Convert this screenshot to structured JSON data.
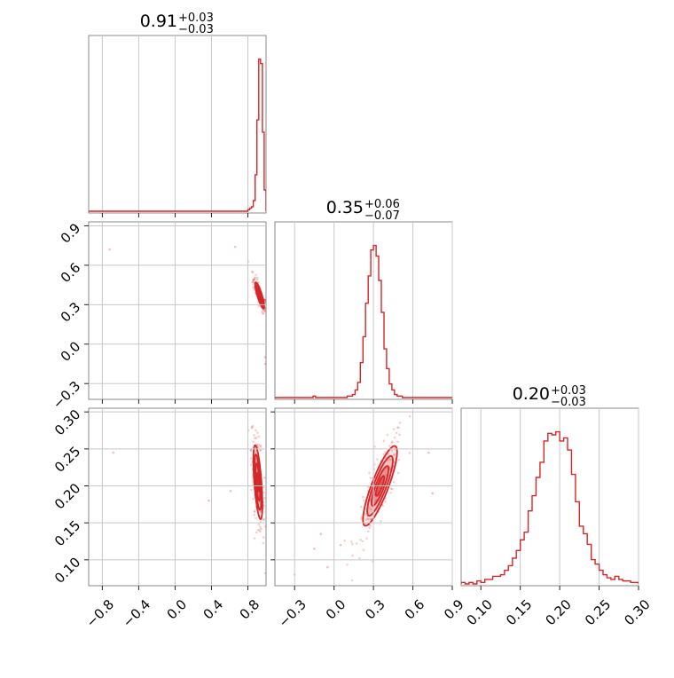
{
  "chart_data": [
    {
      "type": "histogram",
      "panel": "diag-1",
      "title": "0.91",
      "title_err_plus": "+0.03",
      "title_err_minus": "−0.03",
      "xlim": [
        -0.95,
        1.0
      ],
      "x_ticks": [
        -0.8,
        -0.4,
        0.0,
        0.4,
        0.8
      ],
      "x_tick_labels": [
        "−0.8",
        "−0.4",
        "0.0",
        "0.4",
        "0.8"
      ],
      "bin_edges": [
        0.78,
        0.8,
        0.82,
        0.84,
        0.86,
        0.88,
        0.9,
        0.92,
        0.94,
        0.96,
        0.98,
        1.0
      ],
      "counts": [
        0.0,
        0.01,
        0.02,
        0.03,
        0.07,
        0.24,
        0.6,
        1.0,
        0.97,
        0.52,
        0.14
      ],
      "grid": true,
      "color": "#d62728"
    },
    {
      "type": "histogram",
      "panel": "diag-2",
      "title": "0.35",
      "title_err_plus": "+0.06",
      "title_err_minus": "−0.07",
      "xlim": [
        -0.45,
        0.9
      ],
      "x_ticks": [
        -0.3,
        0.0,
        0.3,
        0.6,
        0.9
      ],
      "x_tick_labels": [
        "−0.3",
        "0.0",
        "0.3",
        "0.6",
        "0.9"
      ],
      "bin_edges": [
        -0.16,
        -0.14,
        -0.12,
        -0.1,
        -0.08,
        -0.06,
        -0.04,
        -0.02,
        0.0,
        0.02,
        0.04,
        0.06,
        0.08,
        0.1,
        0.12,
        0.14,
        0.16,
        0.18,
        0.2,
        0.22,
        0.24,
        0.26,
        0.28,
        0.3,
        0.32,
        0.34,
        0.36,
        0.38,
        0.4,
        0.42,
        0.44,
        0.46,
        0.48,
        0.5,
        0.52,
        0.54
      ],
      "counts": [
        0.01,
        0.0,
        0.0,
        0.0,
        0.0,
        0.0,
        0.0,
        0.0,
        0.0,
        0.0,
        0.0,
        0.0,
        0.0,
        0.01,
        0.01,
        0.02,
        0.05,
        0.1,
        0.23,
        0.4,
        0.62,
        0.8,
        0.97,
        1.0,
        0.93,
        0.77,
        0.56,
        0.32,
        0.19,
        0.09,
        0.05,
        0.02,
        0.01,
        0.01,
        0.0
      ],
      "grid": true,
      "color": "#d62728"
    },
    {
      "type": "histogram",
      "panel": "diag-3",
      "title": "0.20",
      "title_err_plus": "+0.03",
      "title_err_minus": "−0.03",
      "xlim": [
        0.075,
        0.3
      ],
      "x_ticks": [
        0.1,
        0.15,
        0.2,
        0.25,
        0.3
      ],
      "x_tick_labels": [
        "0.10",
        "0.15",
        "0.20",
        "0.25",
        "0.30"
      ],
      "bin_edges": [
        0.075,
        0.08,
        0.085,
        0.09,
        0.095,
        0.1,
        0.105,
        0.11,
        0.115,
        0.12,
        0.125,
        0.13,
        0.135,
        0.14,
        0.145,
        0.15,
        0.155,
        0.16,
        0.165,
        0.17,
        0.175,
        0.18,
        0.185,
        0.19,
        0.195,
        0.2,
        0.205,
        0.21,
        0.215,
        0.22,
        0.225,
        0.23,
        0.235,
        0.24,
        0.245,
        0.25,
        0.255,
        0.26,
        0.265,
        0.27,
        0.275,
        0.28,
        0.285,
        0.29,
        0.295,
        0.3
      ],
      "counts": [
        0.01,
        0.0,
        0.01,
        0.0,
        0.02,
        0.01,
        0.03,
        0.03,
        0.05,
        0.05,
        0.06,
        0.09,
        0.12,
        0.17,
        0.22,
        0.29,
        0.34,
        0.48,
        0.58,
        0.7,
        0.8,
        0.94,
        0.99,
        0.98,
        1.0,
        0.94,
        0.96,
        0.88,
        0.72,
        0.54,
        0.38,
        0.33,
        0.26,
        0.16,
        0.13,
        0.09,
        0.06,
        0.04,
        0.03,
        0.05,
        0.03,
        0.02,
        0.02,
        0.01,
        0.01
      ],
      "grid": true,
      "color": "#d62728"
    },
    {
      "type": "contour_scatter",
      "panel": "p21",
      "xlim": [
        -0.95,
        1.0
      ],
      "ylim": [
        -0.42,
        0.93
      ],
      "y_ticks": [
        -0.3,
        0.0,
        0.3,
        0.6,
        0.9
      ],
      "y_tick_labels": [
        "−0.3",
        "0.0",
        "0.3",
        "0.6",
        "0.9"
      ],
      "center": [
        0.93,
        0.37
      ],
      "sigma": [
        0.025,
        0.05
      ],
      "rho": -0.85,
      "outliers": [
        [
          -0.72,
          0.72
        ],
        [
          0.66,
          0.74
        ],
        [
          0.99,
          -0.1
        ],
        [
          0.99,
          -0.15
        ]
      ],
      "grid": true,
      "color": "#d62728"
    },
    {
      "type": "contour_scatter",
      "panel": "p31",
      "xlim": [
        -0.95,
        1.0
      ],
      "ylim": [
        0.065,
        0.305
      ],
      "y_ticks": [
        0.1,
        0.15,
        0.2,
        0.25,
        0.3
      ],
      "y_tick_labels": [
        "0.10",
        "0.15",
        "0.20",
        "0.25",
        "0.30"
      ],
      "center": [
        0.91,
        0.205
      ],
      "sigma": [
        0.025,
        0.025
      ],
      "rho": -0.6,
      "outliers": [
        [
          -0.68,
          0.245
        ],
        [
          0.61,
          0.193
        ],
        [
          0.37,
          0.18
        ]
      ],
      "grid": true,
      "color": "#d62728"
    },
    {
      "type": "contour_scatter",
      "panel": "p32",
      "xlim": [
        -0.45,
        0.9
      ],
      "ylim": [
        0.065,
        0.305
      ],
      "center": [
        0.35,
        0.2
      ],
      "sigma": [
        0.065,
        0.027
      ],
      "rho": 0.85,
      "outliers": [
        [
          -0.1,
          0.135
        ],
        [
          -0.15,
          0.115
        ],
        [
          -0.05,
          0.09
        ],
        [
          0.05,
          0.12
        ],
        [
          0.72,
          0.245
        ],
        [
          0.75,
          0.19
        ],
        [
          -0.3,
          0.08
        ]
      ],
      "grid": true,
      "color": "#d62728"
    }
  ]
}
